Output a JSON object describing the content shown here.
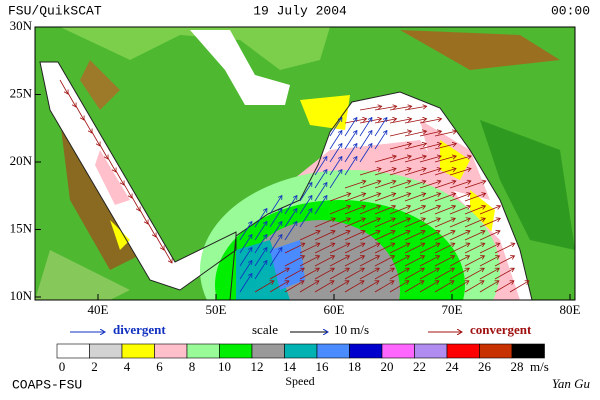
{
  "header": {
    "left": "FSU/QuikSCAT",
    "center": "19 July 2004",
    "right": "00:00"
  },
  "map": {
    "lat_labels": [
      "30N",
      "25N",
      "20N",
      "15N",
      "10N"
    ],
    "lon_labels": [
      "40E",
      "50E",
      "60E",
      "70E",
      "80E"
    ]
  },
  "legend": {
    "divergent": "divergent",
    "scale": "scale",
    "scale_value": "10 m/s",
    "convergent": "convergent"
  },
  "colorbar": {
    "ticks": [
      0,
      2,
      4,
      6,
      8,
      10,
      12,
      14,
      16,
      18,
      20,
      22,
      24,
      26,
      28
    ],
    "unit": "m/s",
    "label": "Speed",
    "colors": [
      "#ffffff",
      "#d3d3d3",
      "#ffff00",
      "#ffc0cb",
      "#98fb98",
      "#00ee00",
      "#999999",
      "#00b2b2",
      "#4a8cff",
      "#0000cd",
      "#ff66ff",
      "#b08cf0",
      "#ff0000",
      "#c83200",
      "#000000"
    ]
  },
  "footer": {
    "left": "COAPS-FSU",
    "right": "Yan Gu"
  }
}
